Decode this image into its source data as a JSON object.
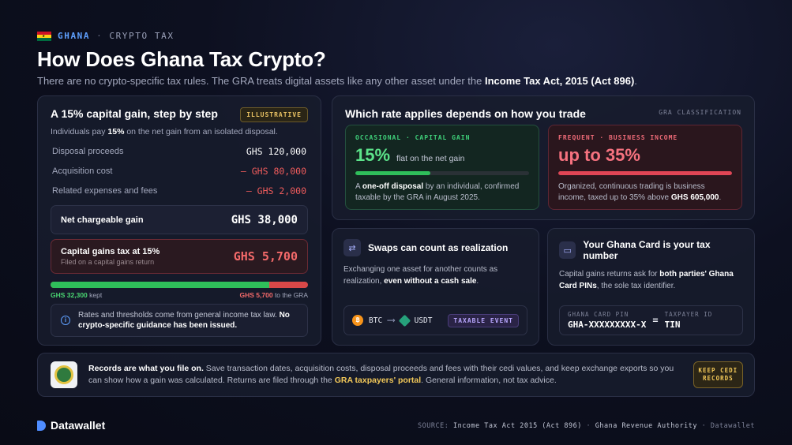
{
  "header": {
    "country": "GHANA",
    "separator": "·",
    "topic": "CRYPTO TAX",
    "title": "How Does Ghana Tax Crypto?",
    "subtitle_pre": "There are no crypto-specific tax rules. The GRA treats digital assets like any other asset under the ",
    "subtitle_bold": "Income Tax Act, 2015 (Act 896)",
    "subtitle_post": "."
  },
  "capital_gain": {
    "title": "A 15% capital gain, step by step",
    "badge": "ILLUSTRATIVE",
    "intro_pre": "Individuals pay ",
    "intro_bold": "15%",
    "intro_post": " on the net gain from an isolated disposal.",
    "rows": [
      {
        "label": "Disposal proceeds",
        "value": "GHS 120,000"
      },
      {
        "label": "Acquisition cost",
        "value": "– GHS 80,000"
      },
      {
        "label": "Related expenses and fees",
        "value": "– GHS 2,000"
      }
    ],
    "net_label": "Net chargeable gain",
    "net_value": "GHS 38,000",
    "cgt_label": "Capital gains tax at 15%",
    "cgt_sub": "Filed on a capital gains return",
    "cgt_value": "GHS 5,700",
    "kept_fraction": 0.85,
    "kept_amount": "GHS 32,300",
    "kept_word": "kept",
    "gra_amount": "GHS 5,700",
    "gra_word": "to the GRA",
    "note_pre": "Rates and thresholds come from general income tax law. ",
    "note_bold": "No crypto-specific guidance has been issued."
  },
  "rate": {
    "title": "Which rate applies depends on how you trade",
    "tag": "GRA CLASSIFICATION",
    "occasional": {
      "label": "OCCASIONAL · CAPITAL GAIN",
      "rate": "15%",
      "rate_desc": "flat on the net gain",
      "bar_fraction": 0.43,
      "desc_pre": "A ",
      "desc_bold": "one-off disposal",
      "desc_post": " by an individual, confirmed taxable by the GRA in August 2025."
    },
    "frequent": {
      "label": "FREQUENT · BUSINESS INCOME",
      "rate": "up to 35%",
      "bar_fraction": 1.0,
      "desc_pre": "Organized, continuous trading is business income, taxed up to 35% above ",
      "desc_bold": "GHS 605,000",
      "desc_post": "."
    }
  },
  "swaps": {
    "icon": "swap-icon",
    "title": "Swaps can count as realization",
    "desc_pre": "Exchanging one asset for another counts as realization, ",
    "desc_bold": "even without a cash sale",
    "desc_post": ".",
    "from": "BTC",
    "to": "USDT",
    "badge": "TAXABLE EVENT"
  },
  "ghana_card": {
    "icon": "id-card-icon",
    "title": "Your Ghana Card is your tax number",
    "desc_pre": "Capital gains returns ask for ",
    "desc_bold": "both parties' Ghana Card PINs",
    "desc_post": ", the sole tax identifier.",
    "pin_label": "GHANA CARD PIN",
    "pin_value": "GHA-XXXXXXXXX-X",
    "eq": "=",
    "tin_label": "TAXPAYER ID",
    "tin_value": "TIN"
  },
  "banner": {
    "lead": "Records are what you file on.",
    "text_1": " Save transaction dates, acquisition costs, disposal proceeds and fees with their cedi values, and keep exchange exports so you can show how a gain was calculated. Returns are filed through the ",
    "portal": "GRA taxpayers' portal",
    "text_2": ". General information, not tax advice.",
    "button": "KEEP CEDI RECORDS"
  },
  "footer": {
    "brand": "Datawallet",
    "source_label": "SOURCE:",
    "source_1": "Income Tax Act 2015 (Act 896)",
    "sep": "·",
    "source_2": "Ghana Revenue Authority",
    "source_3": "Datawallet"
  },
  "colors": {
    "accent_blue": "#5fa0ff",
    "gain_green": "#2fbf5a",
    "tax_red": "#e04555",
    "gold": "#f3c959"
  }
}
